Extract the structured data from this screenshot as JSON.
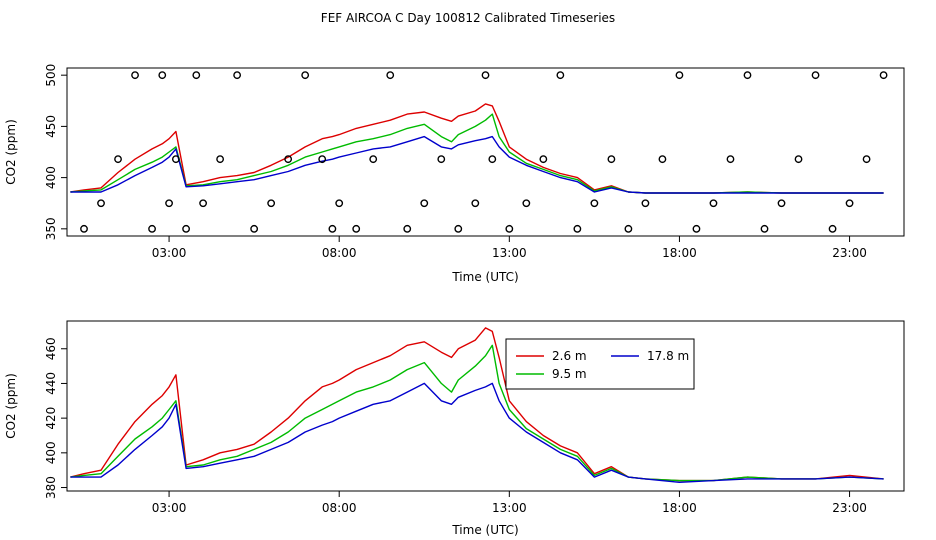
{
  "figure": {
    "title": "FEF AIRCOA C  Day 100812  Calibrated Timeseries"
  },
  "colors": {
    "s1": "#dd0000",
    "s2": "#00bb00",
    "s3": "#0000cc",
    "axis": "#000000"
  },
  "chart_data": [
    {
      "type": "line",
      "xlabel": "Time (UTC)",
      "ylabel": "CO2 (ppm)",
      "xlim": [
        0,
        24.6
      ],
      "ylim": [
        343,
        507
      ],
      "x_ticks": [
        3,
        8,
        13,
        18,
        23
      ],
      "x_tick_labels": [
        "03:00",
        "08:00",
        "13:00",
        "18:00",
        "23:00"
      ],
      "y_ticks": [
        350,
        400,
        450,
        500
      ],
      "y_tick_labels": [
        "350",
        "400",
        "450",
        "500"
      ],
      "grid": false,
      "series": [
        {
          "color": "#dd0000",
          "x": [
            0.1,
            0.5,
            1.0,
            1.5,
            2.0,
            2.5,
            2.8,
            3.0,
            3.2,
            3.5,
            4.0,
            4.5,
            5.0,
            5.5,
            6.0,
            6.5,
            7.0,
            7.5,
            7.8,
            8.0,
            8.5,
            9.0,
            9.5,
            10.0,
            10.5,
            11.0,
            11.3,
            11.5,
            12.0,
            12.3,
            12.5,
            12.7,
            13.0,
            13.5,
            14.0,
            14.5,
            15.0,
            15.5,
            16.0,
            16.5,
            17.0,
            18.0,
            19.0,
            20.0,
            21.0,
            22.0,
            23.0,
            24.0
          ],
          "y": [
            386,
            388,
            390,
            405,
            418,
            428,
            433,
            438,
            445,
            393,
            396,
            400,
            402,
            405,
            412,
            420,
            430,
            438,
            440,
            442,
            448,
            452,
            456,
            462,
            464,
            458,
            455,
            460,
            465,
            472,
            470,
            455,
            430,
            418,
            410,
            404,
            400,
            388,
            392,
            386,
            385,
            385,
            385,
            386,
            385,
            385,
            385,
            385
          ]
        },
        {
          "color": "#00bb00",
          "x": [
            0.1,
            0.5,
            1.0,
            1.5,
            2.0,
            2.5,
            2.8,
            3.0,
            3.2,
            3.5,
            4.0,
            4.5,
            5.0,
            5.5,
            6.0,
            6.5,
            7.0,
            7.5,
            7.8,
            8.0,
            8.5,
            9.0,
            9.5,
            10.0,
            10.5,
            11.0,
            11.3,
            11.5,
            12.0,
            12.3,
            12.5,
            12.7,
            13.0,
            13.5,
            14.0,
            14.5,
            15.0,
            15.5,
            16.0,
            16.5,
            17.0,
            18.0,
            19.0,
            20.0,
            21.0,
            22.0,
            23.0,
            24.0
          ],
          "y": [
            386,
            387,
            388,
            398,
            408,
            415,
            420,
            425,
            430,
            392,
            393,
            396,
            398,
            402,
            406,
            412,
            420,
            425,
            428,
            430,
            435,
            438,
            442,
            448,
            452,
            440,
            435,
            442,
            450,
            456,
            462,
            440,
            425,
            414,
            408,
            402,
            398,
            387,
            391,
            386,
            385,
            385,
            385,
            386,
            385,
            385,
            385,
            385
          ]
        },
        {
          "color": "#0000cc",
          "x": [
            0.1,
            0.5,
            1.0,
            1.5,
            2.0,
            2.5,
            2.8,
            3.0,
            3.2,
            3.5,
            4.0,
            4.5,
            5.0,
            5.5,
            6.0,
            6.5,
            7.0,
            7.5,
            7.8,
            8.0,
            8.5,
            9.0,
            9.5,
            10.0,
            10.5,
            11.0,
            11.3,
            11.5,
            12.0,
            12.3,
            12.5,
            12.7,
            13.0,
            13.5,
            14.0,
            14.5,
            15.0,
            15.5,
            16.0,
            16.5,
            17.0,
            18.0,
            19.0,
            20.0,
            21.0,
            22.0,
            23.0,
            24.0
          ],
          "y": [
            386,
            386,
            386,
            393,
            402,
            410,
            415,
            420,
            428,
            391,
            392,
            394,
            396,
            398,
            402,
            406,
            412,
            416,
            418,
            420,
            424,
            428,
            430,
            435,
            440,
            430,
            428,
            432,
            436,
            438,
            440,
            430,
            420,
            412,
            406,
            400,
            396,
            386,
            390,
            386,
            385,
            385,
            385,
            385,
            385,
            385,
            385,
            385
          ]
        }
      ],
      "points": {
        "x": [
          0.5,
          1.0,
          1.5,
          2.0,
          2.5,
          2.8,
          3.0,
          3.2,
          3.5,
          3.8,
          4.0,
          4.5,
          5.0,
          5.5,
          6.0,
          6.5,
          7.0,
          7.5,
          7.8,
          8.0,
          8.5,
          9.0,
          9.5,
          10.0,
          10.5,
          11.0,
          11.5,
          12.0,
          12.3,
          12.5,
          13.0,
          13.5,
          14.0,
          14.5,
          15.0,
          15.5,
          16.0,
          16.5,
          17.0,
          17.5,
          18.0,
          18.5,
          19.0,
          19.5,
          20.0,
          20.5,
          21.0,
          21.5,
          22.0,
          22.5,
          23.0,
          23.5,
          24.0
        ],
        "y": [
          350,
          375,
          418,
          500,
          350,
          500,
          375,
          418,
          350,
          500,
          375,
          418,
          500,
          350,
          375,
          418,
          500,
          418,
          350,
          375,
          350,
          418,
          500,
          350,
          375,
          418,
          350,
          375,
          500,
          418,
          350,
          375,
          418,
          500,
          350,
          375,
          418,
          350,
          375,
          418,
          500,
          350,
          375,
          418,
          500,
          350,
          375,
          418,
          500,
          350,
          375,
          418,
          500
        ]
      }
    },
    {
      "type": "line",
      "xlabel": "Time (UTC)",
      "ylabel": "CO2 (ppm)",
      "xlim": [
        0,
        24.6
      ],
      "ylim": [
        378,
        476
      ],
      "x_ticks": [
        3,
        8,
        13,
        18,
        23
      ],
      "x_tick_labels": [
        "03:00",
        "08:00",
        "13:00",
        "18:00",
        "23:00"
      ],
      "y_ticks": [
        380,
        400,
        420,
        440,
        460
      ],
      "y_tick_labels": [
        "380",
        "400",
        "420",
        "440",
        "460"
      ],
      "grid": false,
      "legend_position": "top-center",
      "series": [
        {
          "name": "2.6 m",
          "color": "#dd0000",
          "x": [
            0.1,
            0.5,
            1.0,
            1.5,
            2.0,
            2.5,
            2.8,
            3.0,
            3.2,
            3.5,
            4.0,
            4.5,
            5.0,
            5.5,
            6.0,
            6.5,
            7.0,
            7.5,
            7.8,
            8.0,
            8.5,
            9.0,
            9.5,
            10.0,
            10.5,
            11.0,
            11.3,
            11.5,
            12.0,
            12.3,
            12.5,
            12.7,
            13.0,
            13.5,
            14.0,
            14.5,
            15.0,
            15.5,
            16.0,
            16.5,
            17.0,
            18.0,
            19.0,
            20.0,
            21.0,
            22.0,
            23.0,
            24.0
          ],
          "y": [
            386,
            388,
            390,
            405,
            418,
            428,
            433,
            438,
            445,
            393,
            396,
            400,
            402,
            405,
            412,
            420,
            430,
            438,
            440,
            442,
            448,
            452,
            456,
            462,
            464,
            458,
            455,
            460,
            465,
            472,
            470,
            455,
            430,
            418,
            410,
            404,
            400,
            388,
            392,
            386,
            385,
            384,
            384,
            386,
            385,
            385,
            387,
            385
          ]
        },
        {
          "name": "9.5 m",
          "color": "#00bb00",
          "x": [
            0.1,
            0.5,
            1.0,
            1.5,
            2.0,
            2.5,
            2.8,
            3.0,
            3.2,
            3.5,
            4.0,
            4.5,
            5.0,
            5.5,
            6.0,
            6.5,
            7.0,
            7.5,
            7.8,
            8.0,
            8.5,
            9.0,
            9.5,
            10.0,
            10.5,
            11.0,
            11.3,
            11.5,
            12.0,
            12.3,
            12.5,
            12.7,
            13.0,
            13.5,
            14.0,
            14.5,
            15.0,
            15.5,
            16.0,
            16.5,
            17.0,
            18.0,
            19.0,
            20.0,
            21.0,
            22.0,
            23.0,
            24.0
          ],
          "y": [
            386,
            387,
            388,
            398,
            408,
            415,
            420,
            425,
            430,
            392,
            393,
            396,
            398,
            402,
            406,
            412,
            420,
            425,
            428,
            430,
            435,
            438,
            442,
            448,
            452,
            440,
            435,
            442,
            450,
            456,
            462,
            440,
            425,
            414,
            408,
            402,
            398,
            387,
            391,
            386,
            385,
            384,
            384,
            386,
            385,
            385,
            386,
            385
          ]
        },
        {
          "name": "17.8 m",
          "color": "#0000cc",
          "x": [
            0.1,
            0.5,
            1.0,
            1.5,
            2.0,
            2.5,
            2.8,
            3.0,
            3.2,
            3.5,
            4.0,
            4.5,
            5.0,
            5.5,
            6.0,
            6.5,
            7.0,
            7.5,
            7.8,
            8.0,
            8.5,
            9.0,
            9.5,
            10.0,
            10.5,
            11.0,
            11.3,
            11.5,
            12.0,
            12.3,
            12.5,
            12.7,
            13.0,
            13.5,
            14.0,
            14.5,
            15.0,
            15.5,
            16.0,
            16.5,
            17.0,
            18.0,
            19.0,
            20.0,
            21.0,
            22.0,
            23.0,
            24.0
          ],
          "y": [
            386,
            386,
            386,
            393,
            402,
            410,
            415,
            420,
            428,
            391,
            392,
            394,
            396,
            398,
            402,
            406,
            412,
            416,
            418,
            420,
            424,
            428,
            430,
            435,
            440,
            430,
            428,
            432,
            436,
            438,
            440,
            430,
            420,
            412,
            406,
            400,
            396,
            386,
            390,
            386,
            385,
            383,
            384,
            385,
            385,
            385,
            386,
            385
          ]
        }
      ]
    }
  ]
}
